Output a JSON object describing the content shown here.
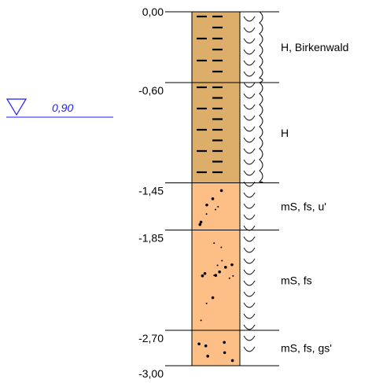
{
  "layers": [
    {
      "top": "0,00",
      "bottom": "-0,60",
      "top_m": 0.0,
      "bottom_m": 0.6,
      "soil": "peat",
      "fill": "#dcae6a",
      "description": "H, Birkenwald"
    },
    {
      "top": "-0,60",
      "bottom": "-1,45",
      "top_m": 0.6,
      "bottom_m": 1.45,
      "soil": "peat",
      "fill": "#dcae6a",
      "description": "H"
    },
    {
      "top": "-1,45",
      "bottom": "-1,85",
      "top_m": 1.45,
      "bottom_m": 1.85,
      "soil": "sand",
      "fill": "#fdbf86",
      "description": "mS, fs, u'"
    },
    {
      "top": "-1,85",
      "bottom": "-2,70",
      "top_m": 1.85,
      "bottom_m": 2.7,
      "soil": "sand",
      "fill": "#fdbf86",
      "description": "mS, fs"
    },
    {
      "top": "-2,70",
      "bottom": "-3,00",
      "top_m": 2.7,
      "bottom_m": 3.0,
      "soil": "sand",
      "fill": "#fdbf86",
      "description": "mS, fs, gs'"
    }
  ],
  "depth_labels": [
    "0,00",
    "-0,60",
    "-1,45",
    "-1,85",
    "-2,70",
    "-3,00"
  ],
  "depth_values": [
    0.0,
    0.6,
    1.45,
    1.85,
    2.7,
    3.0
  ],
  "groundwater": {
    "label": "0,90",
    "depth_m": 0.9,
    "icon": "groundwater-triangle-icon",
    "color": "#1a1aff"
  },
  "total_depth_m": 3.0,
  "moisture_symbol": "wet-arc-icon"
}
